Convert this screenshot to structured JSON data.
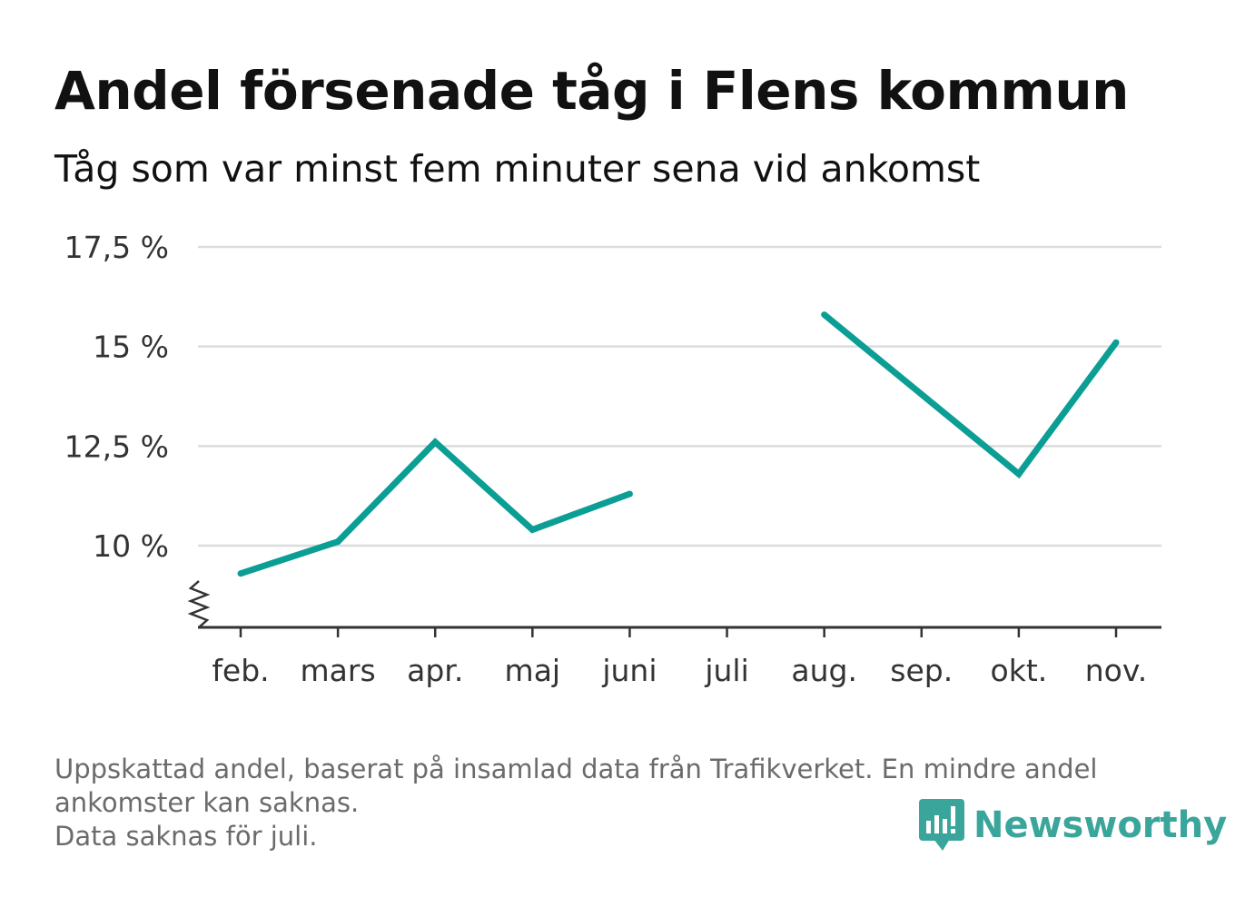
{
  "title": "Andel försenade tåg i Flens kommun",
  "subtitle": "Tåg som var minst fem minuter sena vid ankomst",
  "footnote": {
    "line1": "Uppskattad andel, baserat på insamlad data från Trafikverket. En mindre andel",
    "line2": "ankomster kan saknas.",
    "line3": "Data saknas för juli."
  },
  "brand": {
    "name": "Newsworthy",
    "color": "#3aa59a"
  },
  "chart_data": {
    "type": "line",
    "title": "Andel försenade tåg i Flens kommun",
    "subtitle": "Tåg som var minst fem minuter sena vid ankomst",
    "categories": [
      "feb.",
      "mars",
      "apr.",
      "maj",
      "juni",
      "juli",
      "aug.",
      "sep.",
      "okt.",
      "nov."
    ],
    "series": [
      {
        "values": [
          9.3,
          10.1,
          12.6,
          10.4,
          11.3,
          null,
          15.8,
          13.8,
          11.8,
          15.1
        ],
        "color": "#0a9e94"
      }
    ],
    "y_ticks": [
      10,
      12.5,
      15,
      17.5
    ],
    "y_tick_labels": [
      "10 %",
      "12,5 %",
      "15 %",
      "17,5 %"
    ],
    "ylim": [
      8,
      17.5
    ],
    "axis_break": true,
    "grid": true,
    "gap_note": "juli"
  }
}
